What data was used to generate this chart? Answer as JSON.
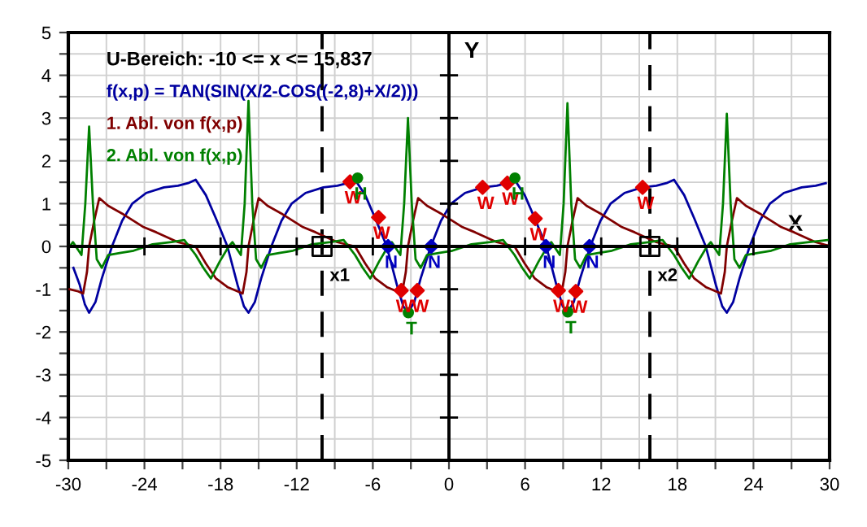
{
  "chart_data": {
    "type": "line",
    "annotations": [
      "U-Bereich: -10 <= x <= 15,837"
    ],
    "xlabel": "X",
    "ylabel": "Y",
    "xlim": [
      -30,
      30
    ],
    "ylim": [
      -5,
      5
    ],
    "xticks": [
      -30,
      {
        "value": -27,
        "label": null
      },
      -24,
      {
        "value": -21,
        "label": null
      },
      -18,
      {
        "value": -15,
        "label": null
      },
      -12,
      {
        "value": -9,
        "label": null
      },
      -6,
      {
        "value": -3,
        "label": null
      },
      0,
      {
        "value": 3,
        "label": null
      },
      6,
      {
        "value": 9,
        "label": null
      },
      12,
      {
        "value": 15,
        "label": null
      },
      18,
      {
        "value": 21,
        "label": null
      },
      24,
      {
        "value": 27,
        "label": null
      },
      30
    ],
    "yticks": [
      -5,
      {
        "value": -4.5,
        "label": null
      },
      -4,
      {
        "value": -3.5,
        "label": null
      },
      -3,
      {
        "value": -2.5,
        "label": null
      },
      -2,
      {
        "value": -1.5,
        "label": null
      },
      -1,
      {
        "value": -0.5,
        "label": null
      },
      0,
      {
        "value": 0.5,
        "label": null
      },
      1,
      {
        "value": 1.5,
        "label": null
      },
      2,
      {
        "value": 2.5,
        "label": null
      },
      3,
      {
        "value": 3.5,
        "label": null
      },
      4,
      {
        "value": 4.5,
        "label": null
      },
      5
    ],
    "grid": true,
    "ref_lines": [
      {
        "axis": "x",
        "value": -10,
        "label": "x1",
        "color": "#000000",
        "line_style": "dashed"
      },
      {
        "axis": "x",
        "value": 15.837,
        "label": "x2",
        "color": "#000000",
        "line_style": "dashed"
      }
    ],
    "series": [
      {
        "name": "f(x,p) = TAN(SIN(X/2-COS((-2,8)+X/2)))",
        "color": "#0000a0",
        "x": [
          -29.6,
          -29.1,
          -28.7,
          -28.36,
          -27.86,
          -27.36,
          -26.56,
          -25.76,
          -24.96,
          -23.86,
          -22.46,
          -21.36,
          -20.56,
          -19.96,
          -19.16,
          -18.36,
          -17.46,
          -16.66,
          -16.16,
          -15.8,
          -15.3,
          -14.8,
          -14.0,
          -13.2,
          -12.4,
          -11.3,
          -9.9,
          -8.8,
          -8.0,
          -7.4,
          -6.6,
          -5.8,
          -4.9,
          -4.1,
          -3.6,
          -3.23,
          -2.73,
          -2.23,
          -1.43,
          -0.63,
          0.17,
          1.27,
          2.67,
          3.77,
          4.57,
          5.17,
          5.97,
          6.77,
          7.67,
          8.47,
          8.97,
          9.34,
          9.84,
          10.34,
          11.14,
          11.94,
          12.74,
          13.84,
          15.24,
          16.34,
          17.14,
          17.74,
          18.54,
          19.34,
          20.24,
          21.04,
          21.54,
          21.9,
          22.4,
          22.9,
          23.7,
          24.5,
          25.3,
          26.4,
          27.8,
          28.9,
          29.7
        ],
        "values": [
          -0.5,
          -0.9,
          -1.35,
          -1.55,
          -1.3,
          -0.75,
          0,
          0.6,
          1.0,
          1.25,
          1.38,
          1.42,
          1.48,
          1.56,
          1.2,
          0.65,
          0,
          -0.9,
          -1.4,
          -1.55,
          -1.3,
          -0.75,
          0,
          0.6,
          1.0,
          1.25,
          1.38,
          1.42,
          1.48,
          1.56,
          1.2,
          0.65,
          0,
          -0.9,
          -1.4,
          -1.55,
          -1.3,
          -0.75,
          0,
          0.6,
          1.0,
          1.25,
          1.38,
          1.42,
          1.48,
          1.56,
          1.2,
          0.65,
          0,
          -0.9,
          -1.4,
          -1.55,
          -1.3,
          -0.75,
          0,
          0.6,
          1.0,
          1.25,
          1.38,
          1.42,
          1.48,
          1.56,
          1.2,
          0.65,
          0,
          -0.9,
          -1.4,
          -1.55,
          -1.3,
          -0.75,
          0,
          0.6,
          1.0,
          1.25,
          1.38,
          1.42,
          1.48
        ]
      },
      {
        "name": "1. Abl. von f(x,p)",
        "color": "#800000",
        "x": [
          -29.9,
          -29.23,
          -28.83,
          -28.53,
          -28.36,
          -27.96,
          -27.56,
          -26.86,
          -25.66,
          -24.06,
          -23.06,
          -21.36,
          -19.96,
          -19.16,
          -18.36,
          -17.46,
          -16.66,
          -16.26,
          -15.96,
          -15.8,
          -15.4,
          -15.0,
          -14.3,
          -13.1,
          -11.5,
          -10.5,
          -8.8,
          -7.4,
          -6.6,
          -5.8,
          -4.9,
          -4.1,
          -3.7,
          -3.4,
          -3.23,
          -2.83,
          -2.43,
          -1.73,
          -0.53,
          1.07,
          2.07,
          3.77,
          5.17,
          5.97,
          6.77,
          7.67,
          8.47,
          8.87,
          9.17,
          9.34,
          9.74,
          10.14,
          10.84,
          12.04,
          13.64,
          14.64,
          16.34,
          17.74,
          18.54,
          19.34,
          20.24,
          21.04,
          21.44,
          21.74,
          21.9,
          22.3,
          22.7,
          23.4,
          24.6,
          26.2,
          27.2,
          28.9,
          29.9
        ],
        "values": [
          -1.0,
          -1.05,
          -1.1,
          -0.6,
          0,
          0.6,
          1.13,
          0.95,
          0.75,
          0.45,
          0.33,
          0.1,
          0,
          -0.4,
          -0.75,
          -0.95,
          -1.05,
          -1.1,
          -0.6,
          0,
          0.6,
          1.13,
          0.95,
          0.75,
          0.45,
          0.33,
          0.1,
          0,
          -0.4,
          -0.75,
          -0.95,
          -1.05,
          -1.1,
          -0.6,
          0,
          0.6,
          1.13,
          0.95,
          0.75,
          0.45,
          0.33,
          0.1,
          0,
          -0.4,
          -0.75,
          -0.95,
          -1.05,
          -1.1,
          -0.6,
          0,
          0.6,
          1.13,
          0.95,
          0.75,
          0.45,
          0.33,
          0.1,
          0,
          -0.4,
          -0.75,
          -0.95,
          -1.05,
          -1.1,
          -0.6,
          0,
          0.6,
          1.13,
          0.95,
          0.75,
          0.45,
          0.33,
          0.1,
          0.02
        ]
      },
      {
        "name": "2. Abl. von f(x,p)",
        "color": "#008000",
        "x": [
          -29.9,
          -29.63,
          -28.96,
          -28.66,
          -28.36,
          -28.06,
          -27.76,
          -27.36,
          -26.86,
          -25.86,
          -24.86,
          -23.36,
          -21.86,
          -20.86,
          -19.96,
          -19.36,
          -18.76,
          -18.06,
          -17.36,
          -17.06,
          -16.4,
          -16.1,
          -15.8,
          -15.5,
          -15.2,
          -14.8,
          -14.3,
          -13.3,
          -12.3,
          -10.8,
          -9.3,
          -8.3,
          -7.4,
          -6.8,
          -6.2,
          -5.5,
          -4.8,
          -4.5,
          -3.83,
          -3.53,
          -3.23,
          -2.93,
          -2.63,
          -2.23,
          -1.73,
          -0.73,
          0.27,
          1.77,
          3.27,
          4.27,
          5.17,
          5.77,
          6.37,
          7.07,
          7.77,
          8.07,
          8.74,
          9.04,
          9.34,
          9.64,
          9.94,
          10.34,
          10.84,
          11.84,
          12.84,
          14.34,
          15.84,
          16.84,
          17.74,
          18.34,
          18.94,
          19.64,
          20.34,
          20.64,
          21.3,
          21.6,
          21.9,
          22.2,
          22.5,
          22.9,
          23.4,
          24.4,
          25.4,
          26.9,
          28.4,
          29.9
        ],
        "values": [
          0.0,
          0.1,
          -0.2,
          1.0,
          2.8,
          1.0,
          -0.3,
          -0.5,
          -0.2,
          -0.15,
          -0.1,
          0.05,
          0.1,
          0.15,
          -0.2,
          -0.5,
          -0.75,
          -0.35,
          0.0,
          0.1,
          -0.2,
          1.0,
          3.4,
          1.0,
          -0.3,
          -0.5,
          -0.2,
          -0.15,
          -0.1,
          0.05,
          0.1,
          0.15,
          -0.2,
          -0.5,
          -0.75,
          -0.35,
          0.0,
          0.1,
          -0.2,
          1.0,
          3.0,
          1.0,
          -0.3,
          -0.5,
          -0.2,
          -0.15,
          -0.1,
          0.05,
          0.1,
          0.15,
          -0.2,
          -0.5,
          -0.75,
          -0.35,
          0.0,
          0.1,
          -0.2,
          1.0,
          3.35,
          1.0,
          -0.3,
          -0.5,
          -0.2,
          -0.15,
          -0.1,
          0.05,
          0.1,
          0.15,
          -0.2,
          -0.5,
          -0.75,
          -0.35,
          0.0,
          0.1,
          -0.2,
          1.0,
          3.1,
          1.0,
          -0.3,
          -0.5,
          -0.2,
          -0.15,
          -0.1,
          0.05,
          0.1,
          0.15
        ]
      },
      {
        "type": "scatter",
        "color": "#e00000",
        "marker": "diamond",
        "x": [
          -7.8,
          -5.55,
          -3.76,
          -2.5,
          2.65,
          4.6,
          6.8,
          8.63,
          10.0,
          15.26
        ],
        "values": [
          1.51,
          0.68,
          -1.03,
          -1.03,
          1.38,
          1.48,
          0.65,
          -1.03,
          -1.05,
          1.38
        ],
        "value_labels": [
          "W",
          "W",
          "W",
          "W",
          "W",
          "W",
          "W",
          "W",
          "W",
          "W"
        ]
      },
      {
        "type": "scatter",
        "color": "#0000c0",
        "marker": "diamond",
        "x": [
          -4.8,
          -1.4,
          7.65,
          11.07
        ],
        "values": [
          0,
          0,
          0,
          0
        ],
        "value_labels": [
          "N",
          "N",
          "N",
          "N"
        ]
      },
      {
        "type": "scatter",
        "color": "#008000",
        "marker": "circle",
        "x": [
          -7.2,
          5.2,
          -3.2,
          9.36
        ],
        "values": [
          1.6,
          1.6,
          -1.55,
          -1.53
        ],
        "value_labels": [
          "H",
          "H",
          "T",
          "T"
        ]
      },
      {
        "type": "scatter",
        "color": "#000000",
        "marker": "square",
        "x": [
          -10,
          15.837
        ],
        "values": [
          0,
          0
        ]
      }
    ]
  }
}
